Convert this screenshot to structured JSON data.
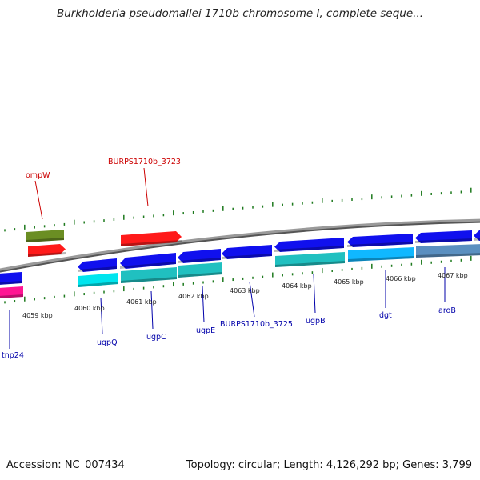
{
  "title": "Burkholderia pseudomallei 1710b chromosome I, complete seque...",
  "footer": {
    "accession": "Accession: NC_007434",
    "topology": "Topology: circular; Length: 4,126,292 bp; Genes: 3,799"
  },
  "colors": {
    "backbone": "#8a8a8a",
    "tick": "#1e7a1e",
    "red_label": "#cc0000",
    "blue_label": "#0000aa",
    "blue_gene": "#1010ee",
    "cyan_gene": "#00e5ee",
    "teal_gene": "#20c0c0",
    "sky_gene": "#10b8ff",
    "steel_gene": "#5a8fc0",
    "red_gene": "#ff1a1a",
    "olive_gene": "#6b8e23",
    "pink_gene": "#ff1493"
  },
  "scale_labels": [
    "4059 kbp",
    "4060 kbp",
    "4061 kbp",
    "4062 kbp",
    "4063 kbp",
    "4064 kbp",
    "4065 kbp",
    "4066 kbp",
    "4067 kbp"
  ],
  "gene_labels": {
    "above": [
      "ompW",
      "BURPS1710b_3723"
    ],
    "below": [
      "tnp24",
      "ugpQ",
      "ugpC",
      "ugpE",
      "BURPS1710b_3725",
      "ugpB",
      "dgt",
      "aroB"
    ]
  }
}
